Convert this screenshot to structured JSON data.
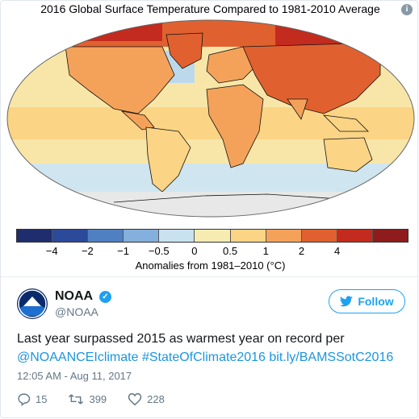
{
  "map": {
    "title": "2016 Global Surface Temperature Compared to 1981-2010 Average",
    "info_icon": "i"
  },
  "legend": {
    "colors": [
      "#1f2d6e",
      "#2c4a9a",
      "#4f80c2",
      "#83b0dc",
      "#c8e2f0",
      "#f6ecb2",
      "#fbd485",
      "#f4a25a",
      "#e0612f",
      "#c32b1e",
      "#8e1c1c"
    ],
    "ticks": [
      "−4",
      "−2",
      "−1",
      "−0.5",
      "0",
      "0.5",
      "1",
      "2",
      "4"
    ],
    "caption": "Anomalies from 1981–2010 (°C)"
  },
  "tweet": {
    "name": "NOAA",
    "handle": "@NOAA",
    "avatar_text": "NOAA",
    "follow_label": "Follow",
    "text_plain": "Last year surpassed 2015 as warmest year on record per",
    "link_mention": "@NOAANCEIclimate",
    "link_hashtag": "#StateOfClimate2016",
    "link_url": "bit.ly/BAMSSotC2016",
    "timestamp": "12:05 AM - Aug 11, 2017",
    "replies": "15",
    "retweets": "399",
    "likes": "228"
  }
}
